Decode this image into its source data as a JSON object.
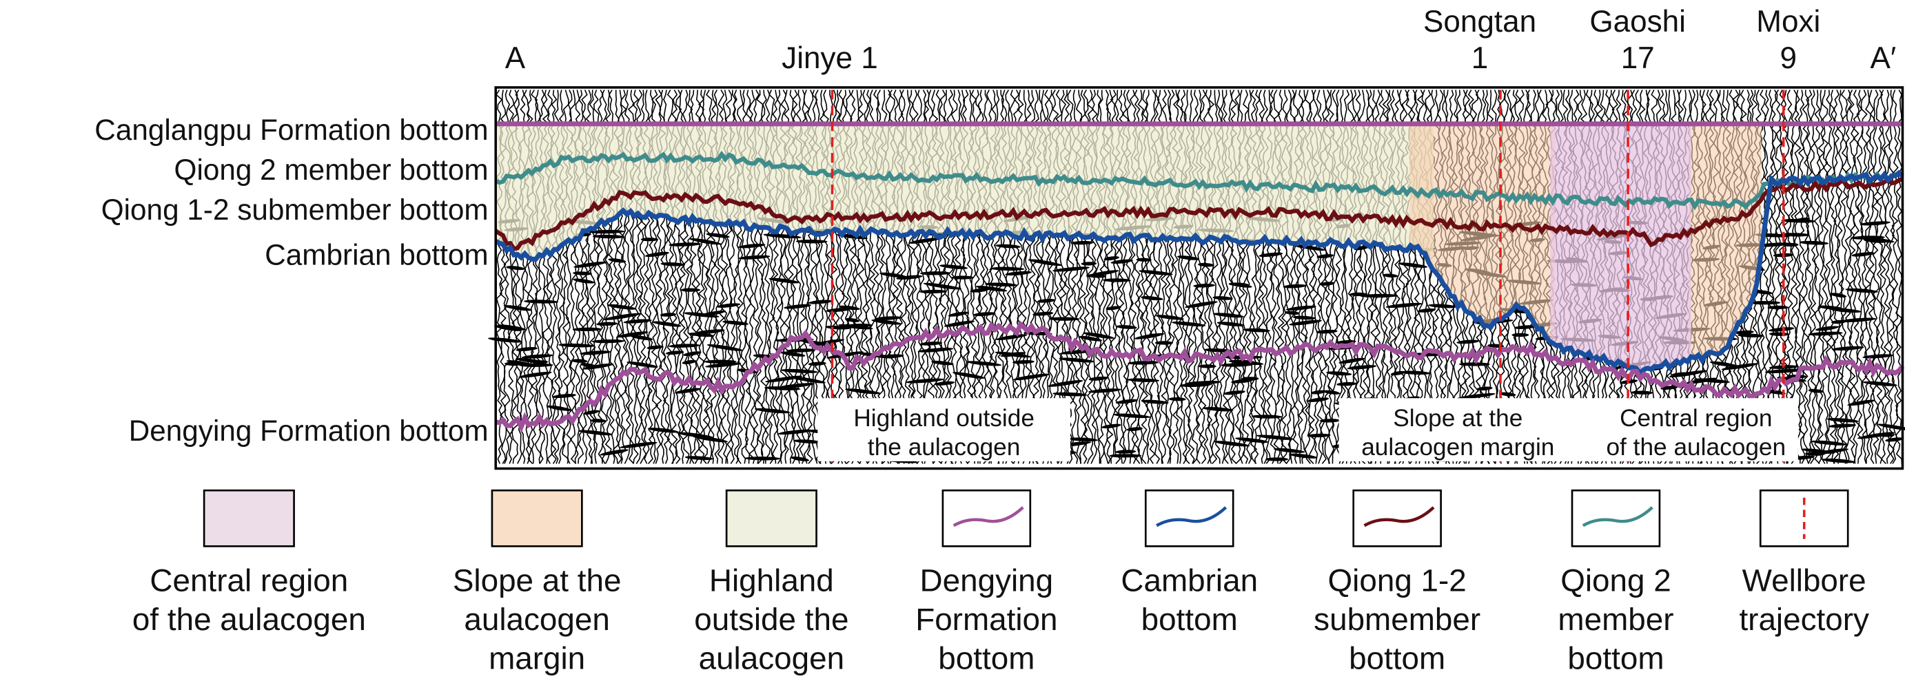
{
  "profile": {
    "start": "A",
    "end": "A′"
  },
  "wells": [
    {
      "lines": [
        "Jinye 1"
      ]
    },
    {
      "lines": [
        "Songtan",
        "1"
      ]
    },
    {
      "lines": [
        "Gaoshi",
        "17"
      ]
    },
    {
      "lines": [
        "Moxi",
        "9"
      ]
    }
  ],
  "horizons": [
    "Canglangpu Formation bottom",
    "Qiong 2 member bottom",
    "Qiong 1-2 submember bottom",
    "Cambrian bottom",
    "Dengying Formation bottom"
  ],
  "regions": [
    {
      "lines": [
        "Highland outside",
        "the aulacogen"
      ]
    },
    {
      "lines": [
        "Slope at the",
        "aulacogen margin"
      ]
    },
    {
      "lines": [
        "Central region",
        "of the aulacogen"
      ]
    }
  ],
  "legend": [
    {
      "lines": [
        "Central region",
        "of the aulacogen"
      ]
    },
    {
      "lines": [
        "Slope at the",
        "aulacogen",
        "margin"
      ]
    },
    {
      "lines": [
        "Highland",
        "outside the",
        "aulacogen"
      ]
    },
    {
      "lines": [
        "Dengying",
        "Formation",
        "bottom"
      ]
    },
    {
      "lines": [
        "Cambrian",
        "bottom"
      ]
    },
    {
      "lines": [
        "Qiong 1-2",
        "submember",
        "bottom"
      ]
    },
    {
      "lines": [
        "Qiong 2",
        "member",
        "bottom"
      ]
    },
    {
      "lines": [
        "Wellbore",
        "trajectory"
      ]
    }
  ]
}
